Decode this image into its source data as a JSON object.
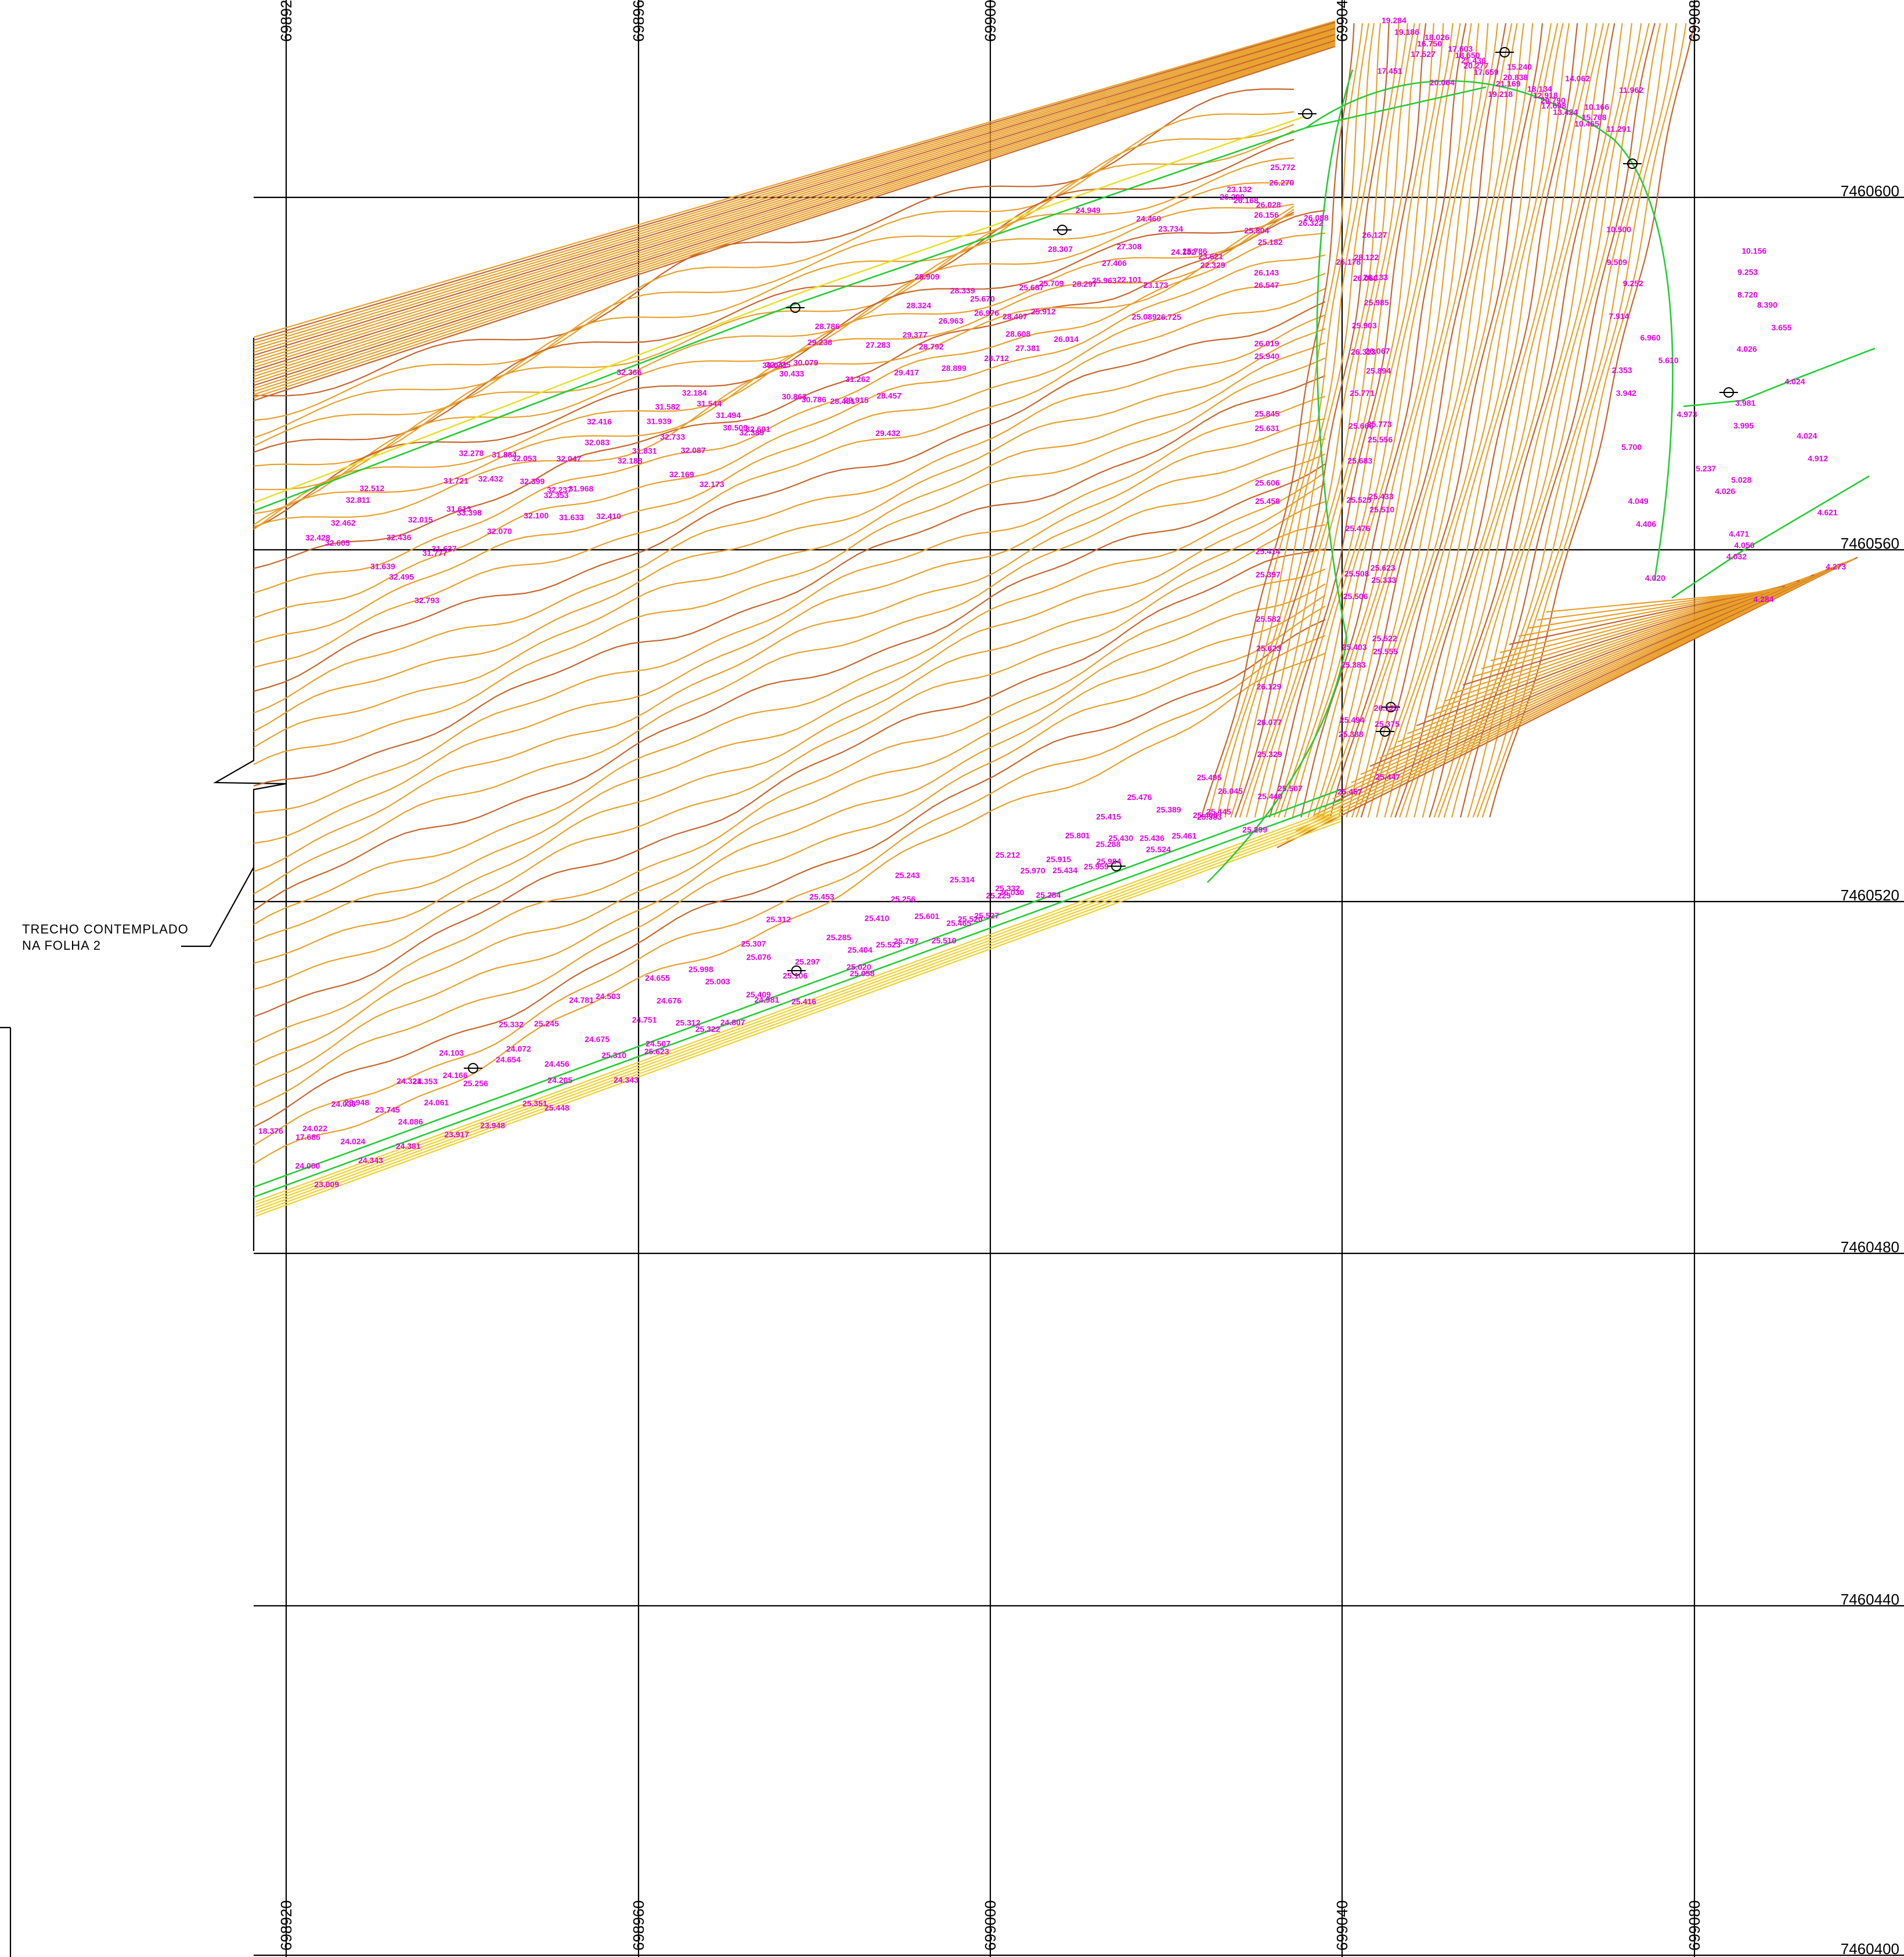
{
  "colors": {
    "grid": "#000000",
    "contour_minor": "#E8A02A",
    "contour_major": "#C8642A",
    "contour_yellow": "#F2D02A",
    "road_edge": "#22CC33",
    "road_center": "#E8E02A",
    "elevation_label": "#E000E0",
    "background": "#FFFFFF"
  },
  "coordinates": {
    "easting": [
      "698920",
      "698960",
      "699000",
      "699040",
      "699080"
    ],
    "northing": [
      "7460600",
      "7460560",
      "7460520",
      "7460480",
      "7460440",
      "7460400"
    ]
  },
  "note": {
    "line1": "TRECHO  CONTEMPLADO",
    "line2": "NA  FOLHA  2"
  },
  "elevations": [
    "32.605",
    "32.436",
    "32.462",
    "32.428",
    "32.495",
    "32.793",
    "32.811",
    "32.512",
    "31.613",
    "31.637",
    "31.639",
    "31.777",
    "31.884",
    "31.721",
    "32.015",
    "32.070",
    "32.100",
    "33.398",
    "32.278",
    "32.237",
    "32.353",
    "32.432",
    "32.399",
    "32.410",
    "32.047",
    "32.053",
    "32.083",
    "31.831",
    "31.968",
    "31.633",
    "31.939",
    "31.582",
    "32.416",
    "32.188",
    "32.173",
    "32.169",
    "32.366",
    "32.184",
    "32.389",
    "32.087",
    "32.733",
    "32.691",
    "32.735",
    "31.544",
    "31.494",
    "30.786",
    "30.863",
    "30.509",
    "30.433",
    "31.262",
    "30.079",
    "30.041",
    "29.915",
    "29.432",
    "29.238",
    "28.786",
    "29.377",
    "29.417",
    "28.481",
    "28.457",
    "28.339",
    "28.324",
    "27.283",
    "28.899",
    "28.712",
    "28.792",
    "28.909",
    "28.407",
    "28.608",
    "26.963",
    "26.976",
    "26.014",
    "25.687",
    "25.670",
    "25.709",
    "25.963",
    "25.912",
    "27.381",
    "27.406",
    "27.308",
    "28.307",
    "28.297",
    "26.725",
    "25.089",
    "24.949",
    "24.460",
    "23.621",
    "23.173",
    "22.101",
    "22.329",
    "23.132",
    "23.734",
    "24.182",
    "25.182",
    "25.804",
    "25.786",
    "26.168",
    "26.088",
    "26.028",
    "26.290",
    "26.322",
    "26.178",
    "26.270",
    "25.772",
    "26.156",
    "26.127",
    "28.122",
    "26.143",
    "26.133",
    "26.060",
    "26.547",
    "25.985",
    "25.903",
    "26.019",
    "26.067",
    "26.313",
    "25.940",
    "25.894",
    "25.771",
    "25.845",
    "25.773",
    "25.666",
    "25.631",
    "25.556",
    "25.683",
    "25.606",
    "25.433",
    "25.525",
    "25.458",
    "25.510",
    "25.476",
    "25.414",
    "25.623",
    "25.508",
    "25.397",
    "25.333",
    "25.506",
    "25.582",
    "25.522",
    "25.403",
    "25.623",
    "25.555",
    "25.383",
    "26.129",
    "26.123",
    "25.494",
    "26.077",
    "25.375",
    "25.388",
    "25.329",
    "25.447",
    "25.457",
    "25.440",
    "25.507",
    "26.045",
    "25.495",
    "25.299",
    "25.445",
    "25.389",
    "25.383",
    "25.408",
    "25.476",
    "25.524",
    "25.461",
    "25.430",
    "25.288",
    "25.436",
    "25.415",
    "25.434",
    "25.984",
    "25.959",
    "25.970",
    "25.915",
    "25.801",
    "26.030",
    "25.332",
    "25.284",
    "25.225",
    "25.314",
    "25.212",
    "25.527",
    "25.601",
    "25.465",
    "25.520",
    "25.256",
    "25.243",
    "25.510",
    "25.523",
    "25.404",
    "25.797",
    "25.410",
    "25.453",
    "25.020",
    "25.058",
    "25.106",
    "25.297",
    "25.285",
    "25.312",
    "25.409",
    "25.416",
    "24.981",
    "25.003",
    "25.076",
    "25.307",
    "25.312",
    "25.322",
    "24.807",
    "24.676",
    "24.655",
    "25.998",
    "25.623",
    "25.310",
    "24.507",
    "24.751",
    "24.781",
    "24.503",
    "24.343",
    "24.205",
    "24.456",
    "24.675",
    "25.245",
    "25.332",
    "25.448",
    "25.351",
    "25.256",
    "24.654",
    "24.072",
    "24.103",
    "23.917",
    "23.948",
    "24.061",
    "24.321",
    "24.166",
    "24.353",
    "24.343",
    "24.381",
    "24.086",
    "24.033",
    "23.948",
    "23.745",
    "23.009",
    "24.000",
    "24.024",
    "24.022",
    "18.376",
    "17.686",
    "19.284",
    "18.026",
    "17.527",
    "17.451",
    "19.186",
    "17.603",
    "20.277",
    "20.064",
    "16.750",
    "21.436",
    "20.838",
    "19.218",
    "18.650",
    "17.659",
    "18.134",
    "17.698",
    "15.240",
    "21.169",
    "20.790",
    "15.768",
    "14.062",
    "12.918",
    "13.424",
    "11.291",
    "11.962",
    "10.166",
    "10.465",
    "10.500",
    "10.156",
    "9.253",
    "9.509",
    "9.252",
    "8.390",
    "8.720",
    "7.914",
    "6.960",
    "3.655",
    "4.026",
    "2.353",
    "5.610",
    "4.024",
    "3.981",
    "3.942",
    "4.973",
    "4.024",
    "3.995",
    "5.700",
    "5.237",
    "4.912",
    "5.028",
    "4.049",
    "4.026",
    "4.621",
    "4.471",
    "4.406",
    "4.050",
    "4.273",
    "4.032",
    "4.020",
    "4.284"
  ]
}
